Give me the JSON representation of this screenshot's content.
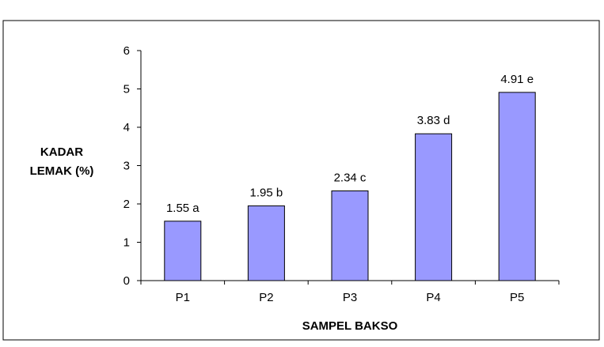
{
  "chart_data": {
    "type": "bar",
    "title": "",
    "xlabel": "SAMPEL BAKSO",
    "ylabel_lines": [
      "KADAR",
      "LEMAK (%)"
    ],
    "categories": [
      "P1",
      "P2",
      "P3",
      "P4",
      "P5"
    ],
    "values": [
      1.55,
      1.95,
      2.34,
      3.83,
      4.91
    ],
    "data_labels": [
      "1.55 a",
      "1.95 b",
      "2.34 c",
      "3.83 d",
      "4.91 e"
    ],
    "ylim": [
      0,
      6
    ],
    "yticks": [
      "0",
      "1",
      "2",
      "3",
      "4",
      "5",
      "6"
    ],
    "grid": false,
    "legend": "none",
    "colors": {
      "bar_fill": "#9999ff",
      "bar_stroke": "#000000",
      "axis": "#000000",
      "frame": "#000000"
    }
  }
}
